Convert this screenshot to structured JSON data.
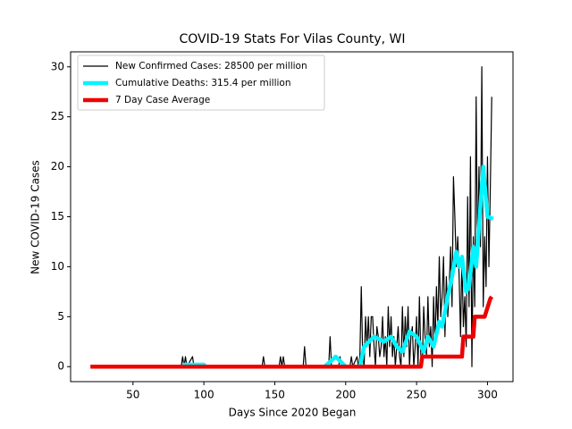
{
  "chart_data": {
    "type": "line",
    "title": "COVID-19 Stats For Vilas County, WI",
    "x_label": "Days Since 2020 Began",
    "y_label": "New COVID-19 Cases",
    "xlim": [
      6,
      318
    ],
    "ylim": [
      -1.5,
      31.5
    ],
    "xticks": [
      50,
      100,
      150,
      200,
      250,
      300
    ],
    "yticks": [
      0,
      5,
      10,
      15,
      20,
      25,
      30
    ],
    "legend": "upper left",
    "series": [
      {
        "name": "New Confirmed Cases: 28500 per million",
        "color": "#000000",
        "x": [
          20,
          84,
          85,
          86,
          87,
          88,
          92,
          93,
          141,
          142,
          143,
          153,
          154,
          155,
          156,
          157,
          170,
          171,
          172,
          188,
          189,
          190,
          195,
          196,
          197,
          203,
          204,
          205,
          208,
          209,
          210,
          211,
          212,
          213,
          214,
          215,
          216,
          217,
          218,
          219,
          220,
          221,
          222,
          223,
          224,
          225,
          226,
          227,
          228,
          229,
          230,
          231,
          232,
          233,
          234,
          235,
          236,
          237,
          238,
          239,
          240,
          241,
          242,
          243,
          244,
          245,
          246,
          247,
          248,
          249,
          250,
          251,
          252,
          253,
          254,
          255,
          256,
          257,
          258,
          259,
          260,
          261,
          262,
          263,
          264,
          265,
          266,
          267,
          268,
          269,
          270,
          271,
          272,
          273,
          274,
          275,
          276,
          277,
          278,
          279,
          280,
          281,
          282,
          283,
          284,
          285,
          286,
          287,
          288,
          289,
          290,
          291,
          292,
          293,
          294,
          295,
          296,
          297,
          298,
          299,
          300,
          301,
          302,
          303
        ],
        "values": [
          0,
          0,
          1,
          0,
          1,
          0,
          1,
          0,
          0,
          1,
          0,
          0,
          1,
          0,
          1,
          0,
          0,
          2,
          0,
          0,
          3,
          0,
          0,
          1,
          0,
          0,
          1,
          0,
          1,
          0,
          1,
          8,
          1,
          0,
          5,
          2,
          5,
          1,
          5,
          5,
          2,
          0,
          4,
          3,
          1,
          2,
          5,
          1,
          3,
          0,
          6,
          2,
          5,
          1,
          3,
          0,
          2,
          4,
          1,
          0,
          6,
          1,
          5,
          2,
          6,
          0,
          3,
          4,
          0,
          2,
          5,
          0,
          7,
          1,
          0,
          6,
          3,
          1,
          7,
          2,
          4,
          0,
          7,
          2,
          8,
          4,
          11,
          5,
          7,
          11,
          3,
          9,
          5,
          8,
          12,
          6,
          19,
          15,
          10,
          13,
          9,
          3,
          11,
          4,
          7,
          2,
          17,
          6,
          21,
          0,
          13,
          6,
          27,
          10,
          20,
          12,
          30,
          6,
          13,
          8,
          21,
          10,
          18,
          27
        ]
      },
      {
        "name": "Cumulative Deaths: 315.4 per million",
        "color": "#00f5ff",
        "x": [
          85,
          100,
          101,
          185,
          190,
          193,
          200,
          210,
          213,
          220,
          227,
          232,
          236,
          240,
          245,
          250,
          255,
          258,
          262,
          266,
          268,
          272,
          275,
          278,
          280,
          282,
          285,
          287,
          290,
          292,
          294,
          297,
          300,
          304
        ],
        "values": [
          0.2,
          0.2,
          0,
          0,
          0.6,
          1,
          0,
          0,
          2,
          3,
          2.5,
          3,
          2,
          1.5,
          3.5,
          3,
          1.5,
          3,
          2,
          4.5,
          4,
          7,
          9,
          11.5,
          10,
          11,
          7.5,
          8,
          12,
          10,
          14,
          20,
          15,
          14.8
        ]
      },
      {
        "name": "7 Day Case Average",
        "color": "#ee0000",
        "x": [
          20,
          253,
          254,
          282,
          283,
          290,
          291,
          297,
          298,
          302,
          303
        ],
        "values": [
          0,
          0,
          1,
          1,
          3,
          3,
          5,
          5,
          5,
          6.8,
          7
        ]
      }
    ]
  }
}
